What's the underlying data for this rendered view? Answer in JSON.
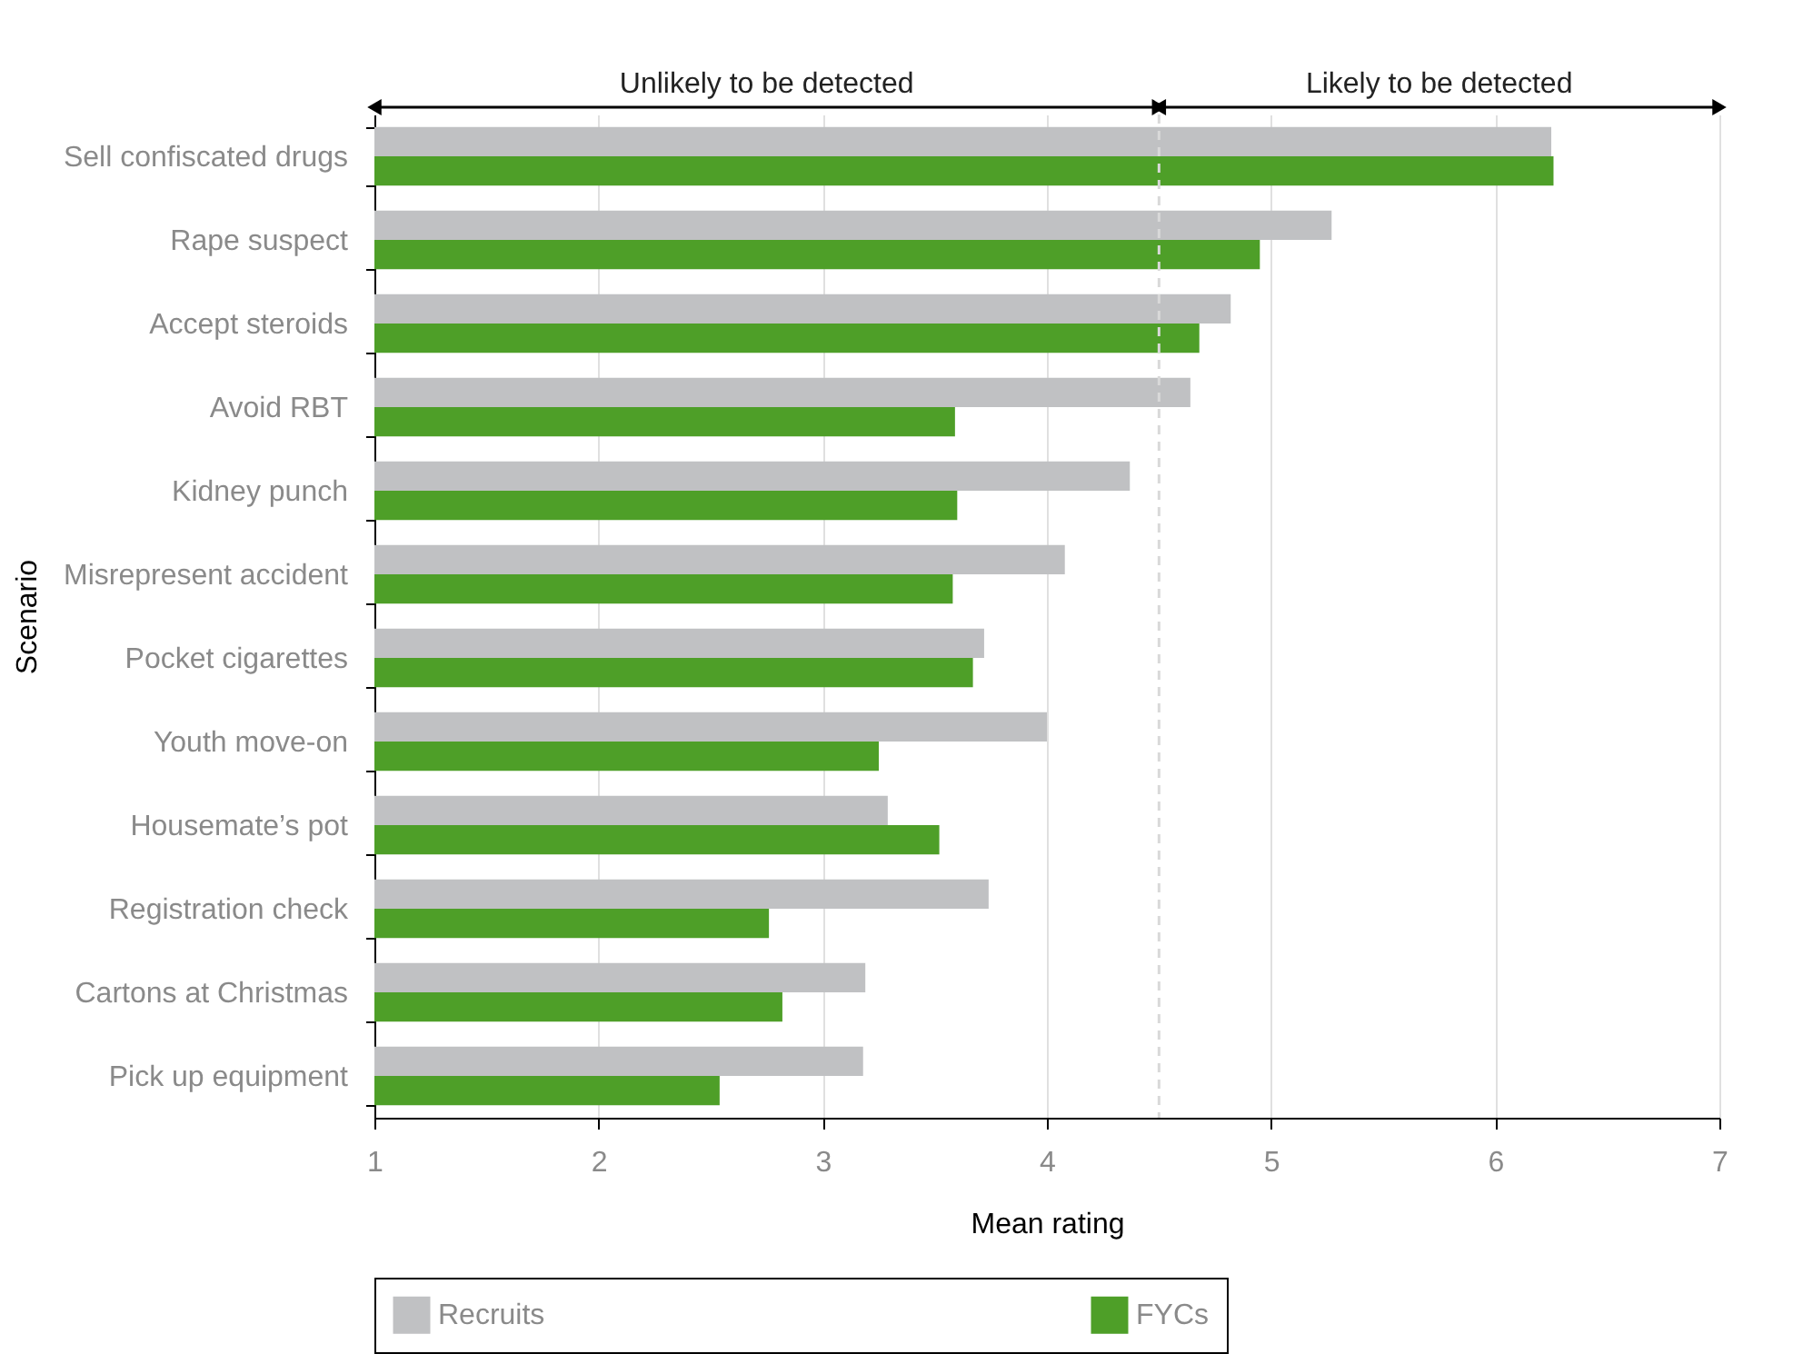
{
  "chart_data": {
    "type": "bar",
    "orientation": "horizontal",
    "xlabel": "Mean rating",
    "ylabel": "Scenario",
    "categories": [
      "Sell confiscated drugs",
      "Rape suspect",
      "Accept steroids",
      "Avoid RBT",
      "Kidney punch",
      "Misrepresent accident",
      "Pocket cigarettes",
      "Youth move-on",
      "Housemate’s pot",
      "Registration check",
      "Cartons at Christmas",
      "Pick up equipment"
    ],
    "series": [
      {
        "name": "Recruits",
        "color": "#c0c1c3",
        "values": [
          6.25,
          5.27,
          4.82,
          4.64,
          4.37,
          4.08,
          3.72,
          4.0,
          3.29,
          3.74,
          3.19,
          3.18
        ]
      },
      {
        "name": "FYCs",
        "color": "#4e9f28",
        "values": [
          6.26,
          4.95,
          4.68,
          3.59,
          3.6,
          3.58,
          3.67,
          3.25,
          3.52,
          2.76,
          2.82,
          2.54
        ]
      }
    ],
    "xlim": [
      1,
      7
    ],
    "xticks": [
      1,
      2,
      3,
      4,
      5,
      6,
      7
    ],
    "grid": "x",
    "legend": "bottom",
    "ref_lines": [
      {
        "axis": "x",
        "value": 4.5,
        "line_style": "dashed",
        "color": "#d9d9d9"
      }
    ],
    "annotations": [
      "Unlikely to be detected",
      "Likely to be detected"
    ]
  }
}
